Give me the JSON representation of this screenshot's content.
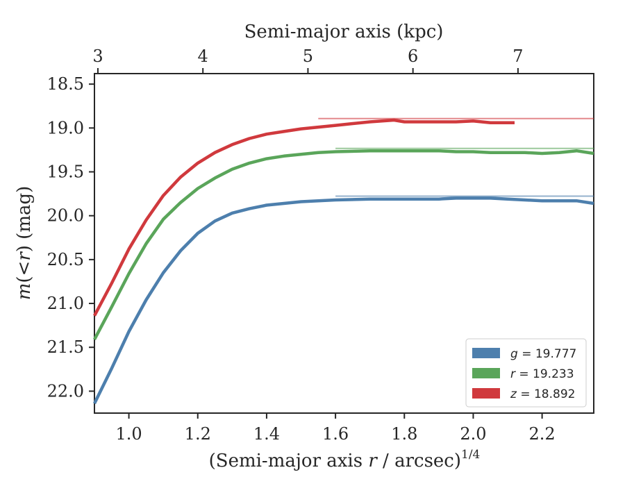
{
  "chart_data": {
    "type": "line",
    "xlabel_prefix": "(Semi-major axis ",
    "xlabel_var": "r",
    "xlabel_suffix": " / arcsec)",
    "xlabel_exponent": "1/4",
    "ylabel_italic": "m",
    "ylabel_mid": "(<",
    "ylabel_var": "r",
    "ylabel_suffix": ") (mag)",
    "top_xlabel": "Semi-major axis (kpc)",
    "xlim": [
      0.9,
      2.35
    ],
    "ylim": [
      22.25,
      18.38
    ],
    "y_inverted": true,
    "x_ticks": [
      "1.0",
      "1.2",
      "1.4",
      "1.6",
      "1.8",
      "2.0",
      "2.2"
    ],
    "x_tick_values": [
      1.0,
      1.2,
      1.4,
      1.6,
      1.8,
      2.0,
      2.2
    ],
    "y_ticks": [
      "18.5",
      "19.0",
      "19.5",
      "20.0",
      "20.5",
      "21.0",
      "21.5",
      "22.0"
    ],
    "y_tick_values": [
      18.5,
      19.0,
      19.5,
      20.0,
      20.5,
      21.0,
      21.5,
      22.0
    ],
    "top_ticks": [
      "3",
      "4",
      "5",
      "6",
      "7"
    ],
    "top_tick_x": [
      0.91,
      1.215,
      1.52,
      1.825,
      2.13
    ],
    "legend_position": "lower-right",
    "series": [
      {
        "band": "g",
        "label_value": "19.777",
        "color": "#4d7fad",
        "asymptote": 19.777,
        "x": [
          0.9,
          0.95,
          1.0,
          1.05,
          1.1,
          1.15,
          1.2,
          1.25,
          1.3,
          1.35,
          1.4,
          1.45,
          1.5,
          1.55,
          1.6,
          1.7,
          1.8,
          1.9,
          1.95,
          2.0,
          2.05,
          2.1,
          2.15,
          2.2,
          2.25,
          2.3,
          2.35
        ],
        "y": [
          22.14,
          21.74,
          21.32,
          20.96,
          20.65,
          20.4,
          20.2,
          20.06,
          19.97,
          19.92,
          19.88,
          19.86,
          19.84,
          19.83,
          19.82,
          19.81,
          19.81,
          19.81,
          19.8,
          19.8,
          19.8,
          19.81,
          19.82,
          19.83,
          19.83,
          19.83,
          19.86
        ]
      },
      {
        "band": "r",
        "label_value": "19.233",
        "color": "#5aa55a",
        "asymptote": 19.233,
        "x": [
          0.9,
          0.95,
          1.0,
          1.05,
          1.1,
          1.15,
          1.2,
          1.25,
          1.3,
          1.35,
          1.4,
          1.45,
          1.5,
          1.55,
          1.6,
          1.7,
          1.8,
          1.9,
          1.95,
          2.0,
          2.05,
          2.1,
          2.15,
          2.2,
          2.25,
          2.3,
          2.35
        ],
        "y": [
          21.41,
          21.04,
          20.66,
          20.32,
          20.04,
          19.85,
          19.69,
          19.57,
          19.47,
          19.4,
          19.35,
          19.32,
          19.3,
          19.28,
          19.27,
          19.26,
          19.26,
          19.26,
          19.27,
          19.27,
          19.28,
          19.28,
          19.28,
          19.29,
          19.28,
          19.26,
          19.29
        ]
      },
      {
        "band": "z",
        "label_value": "18.892",
        "color": "#d0393d",
        "asymptote": 18.892,
        "x": [
          0.9,
          0.95,
          1.0,
          1.05,
          1.1,
          1.15,
          1.2,
          1.25,
          1.3,
          1.35,
          1.4,
          1.45,
          1.5,
          1.55,
          1.6,
          1.65,
          1.7,
          1.77,
          1.8,
          1.9,
          1.95,
          2.0,
          2.05,
          2.12
        ],
        "y": [
          21.14,
          20.77,
          20.38,
          20.05,
          19.77,
          19.56,
          19.4,
          19.28,
          19.19,
          19.12,
          19.07,
          19.04,
          19.01,
          18.99,
          18.97,
          18.95,
          18.93,
          18.91,
          18.93,
          18.93,
          18.93,
          18.92,
          18.94,
          18.94
        ]
      }
    ]
  }
}
